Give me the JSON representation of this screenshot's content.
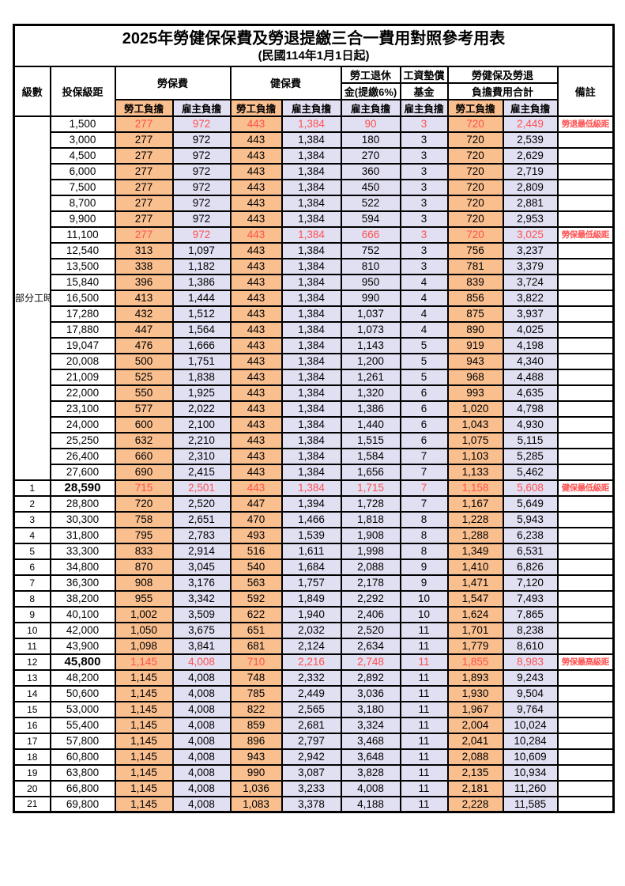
{
  "title": "2025年勞健保保費及勞退提繳三合一費用對照參考用表",
  "subtitle": "(民國114年1月1日起)",
  "colors": {
    "worker_bg": "#FABF8F",
    "employer_bg": "#E1DFF2",
    "highlight_text": "#FF5050"
  },
  "columns": {
    "level": "級數",
    "bracket": "投保級距",
    "labor_fee": "勞保費",
    "health_fee": "健保費",
    "pension_line1": "勞工退休",
    "pension_line2": "金(提繳6%)",
    "wage_fund_line1": "工資墊償",
    "wage_fund_line2": "基金",
    "total_line1": "勞健保及勞退",
    "total_line2": "負擔費用合計",
    "remark": "備註",
    "worker_share": "勞工負擔",
    "employer_share": "雇主負擔"
  },
  "part_time": {
    "label": "部分工時",
    "span": 23
  },
  "rows": [
    {
      "level": "",
      "bracket": "1,500",
      "labor_w": "277",
      "labor_e": "972",
      "health_w": "443",
      "health_e": "1,384",
      "pension_e": "90",
      "wage_e": "3",
      "total_w": "720",
      "total_e": "2,449",
      "remark": "勞退最低級距",
      "highlight": true
    },
    {
      "level": "",
      "bracket": "3,000",
      "labor_w": "277",
      "labor_e": "972",
      "health_w": "443",
      "health_e": "1,384",
      "pension_e": "180",
      "wage_e": "3",
      "total_w": "720",
      "total_e": "2,539",
      "remark": ""
    },
    {
      "level": "",
      "bracket": "4,500",
      "labor_w": "277",
      "labor_e": "972",
      "health_w": "443",
      "health_e": "1,384",
      "pension_e": "270",
      "wage_e": "3",
      "total_w": "720",
      "total_e": "2,629",
      "remark": ""
    },
    {
      "level": "",
      "bracket": "6,000",
      "labor_w": "277",
      "labor_e": "972",
      "health_w": "443",
      "health_e": "1,384",
      "pension_e": "360",
      "wage_e": "3",
      "total_w": "720",
      "total_e": "2,719",
      "remark": ""
    },
    {
      "level": "",
      "bracket": "7,500",
      "labor_w": "277",
      "labor_e": "972",
      "health_w": "443",
      "health_e": "1,384",
      "pension_e": "450",
      "wage_e": "3",
      "total_w": "720",
      "total_e": "2,809",
      "remark": ""
    },
    {
      "level": "",
      "bracket": "8,700",
      "labor_w": "277",
      "labor_e": "972",
      "health_w": "443",
      "health_e": "1,384",
      "pension_e": "522",
      "wage_e": "3",
      "total_w": "720",
      "total_e": "2,881",
      "remark": ""
    },
    {
      "level": "",
      "bracket": "9,900",
      "labor_w": "277",
      "labor_e": "972",
      "health_w": "443",
      "health_e": "1,384",
      "pension_e": "594",
      "wage_e": "3",
      "total_w": "720",
      "total_e": "2,953",
      "remark": ""
    },
    {
      "level": "",
      "bracket": "11,100",
      "labor_w": "277",
      "labor_e": "972",
      "health_w": "443",
      "health_e": "1,384",
      "pension_e": "666",
      "wage_e": "3",
      "total_w": "720",
      "total_e": "3,025",
      "remark": "勞保最低級距",
      "highlight": true
    },
    {
      "level": "",
      "bracket": "12,540",
      "labor_w": "313",
      "labor_e": "1,097",
      "health_w": "443",
      "health_e": "1,384",
      "pension_e": "752",
      "wage_e": "3",
      "total_w": "756",
      "total_e": "3,237",
      "remark": ""
    },
    {
      "level": "",
      "bracket": "13,500",
      "labor_w": "338",
      "labor_e": "1,182",
      "health_w": "443",
      "health_e": "1,384",
      "pension_e": "810",
      "wage_e": "3",
      "total_w": "781",
      "total_e": "3,379",
      "remark": ""
    },
    {
      "level": "",
      "bracket": "15,840",
      "labor_w": "396",
      "labor_e": "1,386",
      "health_w": "443",
      "health_e": "1,384",
      "pension_e": "950",
      "wage_e": "4",
      "total_w": "839",
      "total_e": "3,724",
      "remark": ""
    },
    {
      "level": "",
      "bracket": "16,500",
      "labor_w": "413",
      "labor_e": "1,444",
      "health_w": "443",
      "health_e": "1,384",
      "pension_e": "990",
      "wage_e": "4",
      "total_w": "856",
      "total_e": "3,822",
      "remark": ""
    },
    {
      "level": "",
      "bracket": "17,280",
      "labor_w": "432",
      "labor_e": "1,512",
      "health_w": "443",
      "health_e": "1,384",
      "pension_e": "1,037",
      "wage_e": "4",
      "total_w": "875",
      "total_e": "3,937",
      "remark": ""
    },
    {
      "level": "",
      "bracket": "17,880",
      "labor_w": "447",
      "labor_e": "1,564",
      "health_w": "443",
      "health_e": "1,384",
      "pension_e": "1,073",
      "wage_e": "4",
      "total_w": "890",
      "total_e": "4,025",
      "remark": ""
    },
    {
      "level": "",
      "bracket": "19,047",
      "labor_w": "476",
      "labor_e": "1,666",
      "health_w": "443",
      "health_e": "1,384",
      "pension_e": "1,143",
      "wage_e": "5",
      "total_w": "919",
      "total_e": "4,198",
      "remark": ""
    },
    {
      "level": "",
      "bracket": "20,008",
      "labor_w": "500",
      "labor_e": "1,751",
      "health_w": "443",
      "health_e": "1,384",
      "pension_e": "1,200",
      "wage_e": "5",
      "total_w": "943",
      "total_e": "4,340",
      "remark": ""
    },
    {
      "level": "",
      "bracket": "21,009",
      "labor_w": "525",
      "labor_e": "1,838",
      "health_w": "443",
      "health_e": "1,384",
      "pension_e": "1,261",
      "wage_e": "5",
      "total_w": "968",
      "total_e": "4,488",
      "remark": ""
    },
    {
      "level": "",
      "bracket": "22,000",
      "labor_w": "550",
      "labor_e": "1,925",
      "health_w": "443",
      "health_e": "1,384",
      "pension_e": "1,320",
      "wage_e": "6",
      "total_w": "993",
      "total_e": "4,635",
      "remark": ""
    },
    {
      "level": "",
      "bracket": "23,100",
      "labor_w": "577",
      "labor_e": "2,022",
      "health_w": "443",
      "health_e": "1,384",
      "pension_e": "1,386",
      "wage_e": "6",
      "total_w": "1,020",
      "total_e": "4,798",
      "remark": ""
    },
    {
      "level": "",
      "bracket": "24,000",
      "labor_w": "600",
      "labor_e": "2,100",
      "health_w": "443",
      "health_e": "1,384",
      "pension_e": "1,440",
      "wage_e": "6",
      "total_w": "1,043",
      "total_e": "4,930",
      "remark": ""
    },
    {
      "level": "",
      "bracket": "25,250",
      "labor_w": "632",
      "labor_e": "2,210",
      "health_w": "443",
      "health_e": "1,384",
      "pension_e": "1,515",
      "wage_e": "6",
      "total_w": "1,075",
      "total_e": "5,115",
      "remark": ""
    },
    {
      "level": "",
      "bracket": "26,400",
      "labor_w": "660",
      "labor_e": "2,310",
      "health_w": "443",
      "health_e": "1,384",
      "pension_e": "1,584",
      "wage_e": "7",
      "total_w": "1,103",
      "total_e": "5,285",
      "remark": ""
    },
    {
      "level": "",
      "bracket": "27,600",
      "labor_w": "690",
      "labor_e": "2,415",
      "health_w": "443",
      "health_e": "1,384",
      "pension_e": "1,656",
      "wage_e": "7",
      "total_w": "1,133",
      "total_e": "5,462",
      "remark": ""
    },
    {
      "level": "1",
      "bracket": "28,590",
      "labor_w": "715",
      "labor_e": "2,501",
      "health_w": "443",
      "health_e": "1,384",
      "pension_e": "1,715",
      "wage_e": "7",
      "total_w": "1,158",
      "total_e": "5,608",
      "remark": "健保最低級距",
      "highlight": true,
      "bold": true
    },
    {
      "level": "2",
      "bracket": "28,800",
      "labor_w": "720",
      "labor_e": "2,520",
      "health_w": "447",
      "health_e": "1,394",
      "pension_e": "1,728",
      "wage_e": "7",
      "total_w": "1,167",
      "total_e": "5,649",
      "remark": ""
    },
    {
      "level": "3",
      "bracket": "30,300",
      "labor_w": "758",
      "labor_e": "2,651",
      "health_w": "470",
      "health_e": "1,466",
      "pension_e": "1,818",
      "wage_e": "8",
      "total_w": "1,228",
      "total_e": "5,943",
      "remark": ""
    },
    {
      "level": "4",
      "bracket": "31,800",
      "labor_w": "795",
      "labor_e": "2,783",
      "health_w": "493",
      "health_e": "1,539",
      "pension_e": "1,908",
      "wage_e": "8",
      "total_w": "1,288",
      "total_e": "6,238",
      "remark": ""
    },
    {
      "level": "5",
      "bracket": "33,300",
      "labor_w": "833",
      "labor_e": "2,914",
      "health_w": "516",
      "health_e": "1,611",
      "pension_e": "1,998",
      "wage_e": "8",
      "total_w": "1,349",
      "total_e": "6,531",
      "remark": ""
    },
    {
      "level": "6",
      "bracket": "34,800",
      "labor_w": "870",
      "labor_e": "3,045",
      "health_w": "540",
      "health_e": "1,684",
      "pension_e": "2,088",
      "wage_e": "9",
      "total_w": "1,410",
      "total_e": "6,826",
      "remark": ""
    },
    {
      "level": "7",
      "bracket": "36,300",
      "labor_w": "908",
      "labor_e": "3,176",
      "health_w": "563",
      "health_e": "1,757",
      "pension_e": "2,178",
      "wage_e": "9",
      "total_w": "1,471",
      "total_e": "7,120",
      "remark": ""
    },
    {
      "level": "8",
      "bracket": "38,200",
      "labor_w": "955",
      "labor_e": "3,342",
      "health_w": "592",
      "health_e": "1,849",
      "pension_e": "2,292",
      "wage_e": "10",
      "total_w": "1,547",
      "total_e": "7,493",
      "remark": ""
    },
    {
      "level": "9",
      "bracket": "40,100",
      "labor_w": "1,002",
      "labor_e": "3,509",
      "health_w": "622",
      "health_e": "1,940",
      "pension_e": "2,406",
      "wage_e": "10",
      "total_w": "1,624",
      "total_e": "7,865",
      "remark": ""
    },
    {
      "level": "10",
      "bracket": "42,000",
      "labor_w": "1,050",
      "labor_e": "3,675",
      "health_w": "651",
      "health_e": "2,032",
      "pension_e": "2,520",
      "wage_e": "11",
      "total_w": "1,701",
      "total_e": "8,238",
      "remark": ""
    },
    {
      "level": "11",
      "bracket": "43,900",
      "labor_w": "1,098",
      "labor_e": "3,841",
      "health_w": "681",
      "health_e": "2,124",
      "pension_e": "2,634",
      "wage_e": "11",
      "total_w": "1,779",
      "total_e": "8,610",
      "remark": ""
    },
    {
      "level": "12",
      "bracket": "45,800",
      "labor_w": "1,145",
      "labor_e": "4,008",
      "health_w": "710",
      "health_e": "2,216",
      "pension_e": "2,748",
      "wage_e": "11",
      "total_w": "1,855",
      "total_e": "8,983",
      "remark": "勞保最高級距",
      "highlight": true,
      "bold": true
    },
    {
      "level": "13",
      "bracket": "48,200",
      "labor_w": "1,145",
      "labor_e": "4,008",
      "health_w": "748",
      "health_e": "2,332",
      "pension_e": "2,892",
      "wage_e": "11",
      "total_w": "1,893",
      "total_e": "9,243",
      "remark": ""
    },
    {
      "level": "14",
      "bracket": "50,600",
      "labor_w": "1,145",
      "labor_e": "4,008",
      "health_w": "785",
      "health_e": "2,449",
      "pension_e": "3,036",
      "wage_e": "11",
      "total_w": "1,930",
      "total_e": "9,504",
      "remark": ""
    },
    {
      "level": "15",
      "bracket": "53,000",
      "labor_w": "1,145",
      "labor_e": "4,008",
      "health_w": "822",
      "health_e": "2,565",
      "pension_e": "3,180",
      "wage_e": "11",
      "total_w": "1,967",
      "total_e": "9,764",
      "remark": ""
    },
    {
      "level": "16",
      "bracket": "55,400",
      "labor_w": "1,145",
      "labor_e": "4,008",
      "health_w": "859",
      "health_e": "2,681",
      "pension_e": "3,324",
      "wage_e": "11",
      "total_w": "2,004",
      "total_e": "10,024",
      "remark": ""
    },
    {
      "level": "17",
      "bracket": "57,800",
      "labor_w": "1,145",
      "labor_e": "4,008",
      "health_w": "896",
      "health_e": "2,797",
      "pension_e": "3,468",
      "wage_e": "11",
      "total_w": "2,041",
      "total_e": "10,284",
      "remark": ""
    },
    {
      "level": "18",
      "bracket": "60,800",
      "labor_w": "1,145",
      "labor_e": "4,008",
      "health_w": "943",
      "health_e": "2,942",
      "pension_e": "3,648",
      "wage_e": "11",
      "total_w": "2,088",
      "total_e": "10,609",
      "remark": ""
    },
    {
      "level": "19",
      "bracket": "63,800",
      "labor_w": "1,145",
      "labor_e": "4,008",
      "health_w": "990",
      "health_e": "3,087",
      "pension_e": "3,828",
      "wage_e": "11",
      "total_w": "2,135",
      "total_e": "10,934",
      "remark": ""
    },
    {
      "level": "20",
      "bracket": "66,800",
      "labor_w": "1,145",
      "labor_e": "4,008",
      "health_w": "1,036",
      "health_e": "3,233",
      "pension_e": "4,008",
      "wage_e": "11",
      "total_w": "2,181",
      "total_e": "11,260",
      "remark": ""
    },
    {
      "level": "21",
      "bracket": "69,800",
      "labor_w": "1,145",
      "labor_e": "4,008",
      "health_w": "1,083",
      "health_e": "3,378",
      "pension_e": "4,188",
      "wage_e": "11",
      "total_w": "2,228",
      "total_e": "11,585",
      "remark": ""
    }
  ]
}
